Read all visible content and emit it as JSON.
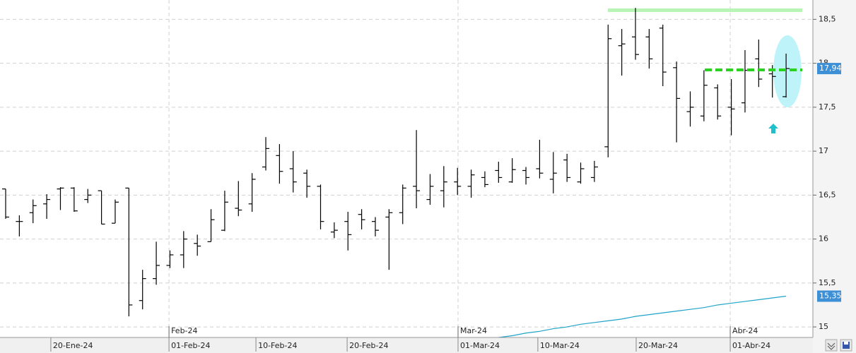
{
  "chart_data": {
    "type": "ohlc",
    "categories": [
      null,
      null,
      null,
      null,
      null,
      null,
      null,
      null,
      null,
      null,
      null,
      null,
      null,
      null,
      null,
      null,
      null,
      null,
      null,
      null,
      null,
      null,
      null,
      null,
      null,
      null,
      null,
      null,
      null,
      null,
      null,
      null,
      null,
      null,
      null,
      null,
      null,
      null,
      null,
      null,
      null,
      null,
      null,
      null,
      null,
      null,
      null,
      null,
      null,
      null,
      null,
      null,
      null,
      null,
      null,
      null,
      null,
      null
    ],
    "open": [
      16.57,
      16.2,
      16.3,
      16.4,
      16.57,
      16.58,
      16.45,
      16.55,
      16.18,
      16.58,
      15.3,
      15.55,
      15.7,
      15.82,
      15.95,
      15.97,
      16.1,
      16.35,
      16.4,
      16.82,
      16.95,
      16.8,
      16.75,
      16.6,
      16.08,
      16.2,
      16.28,
      16.2,
      16.25,
      16.3,
      16.6,
      16.45,
      16.55,
      16.65,
      16.6,
      16.7,
      16.78,
      16.65,
      16.78,
      16.8,
      16.68,
      16.9,
      16.65,
      16.7,
      17.05,
      18.2,
      18.3,
      18.3,
      18.4,
      17.95,
      17.45,
      17.4,
      17.72,
      17.5,
      17.55,
      18.05,
      17.88,
      17.62
    ],
    "high": [
      16.57,
      16.27,
      16.45,
      16.51,
      16.59,
      16.59,
      16.57,
      16.55,
      16.45,
      16.58,
      15.65,
      15.97,
      15.87,
      16.09,
      16.05,
      16.34,
      16.55,
      16.66,
      16.75,
      17.16,
      17.08,
      17.0,
      16.79,
      16.62,
      16.19,
      16.31,
      16.34,
      16.25,
      16.34,
      16.62,
      17.24,
      16.74,
      16.83,
      16.81,
      16.79,
      16.77,
      16.88,
      16.92,
      16.82,
      17.13,
      16.99,
      16.97,
      16.87,
      16.89,
      18.44,
      18.39,
      18.63,
      18.39,
      18.44,
      18.02,
      17.68,
      17.92,
      17.76,
      17.82,
      18.15,
      18.27,
      17.98,
      18.11
    ],
    "low": [
      16.23,
      16.03,
      16.18,
      16.23,
      16.33,
      16.31,
      16.41,
      16.17,
      16.18,
      15.12,
      15.2,
      15.48,
      15.67,
      15.67,
      15.81,
      15.97,
      16.09,
      16.26,
      16.31,
      16.78,
      16.63,
      16.53,
      16.47,
      16.11,
      16.01,
      15.87,
      16.11,
      16.03,
      15.65,
      16.17,
      16.35,
      16.39,
      16.36,
      16.5,
      16.47,
      16.59,
      16.64,
      16.64,
      16.62,
      16.69,
      16.52,
      16.65,
      16.63,
      16.65,
      16.93,
      17.86,
      18.04,
      17.94,
      17.74,
      17.1,
      17.28,
      17.34,
      17.36,
      17.18,
      17.44,
      17.73,
      17.61,
      17.61
    ],
    "close": [
      16.25,
      16.2,
      16.38,
      16.45,
      16.58,
      16.32,
      16.5,
      16.17,
      16.42,
      15.25,
      15.55,
      15.7,
      15.82,
      16.0,
      15.92,
      16.22,
      16.42,
      16.33,
      16.68,
      17.03,
      16.77,
      16.65,
      16.6,
      16.2,
      16.1,
      16.05,
      16.22,
      16.1,
      16.3,
      16.58,
      16.55,
      16.6,
      16.65,
      16.6,
      16.73,
      16.62,
      16.7,
      16.79,
      16.7,
      16.75,
      16.75,
      16.7,
      16.8,
      16.82,
      18.28,
      18.22,
      18.1,
      18.05,
      17.9,
      17.6,
      17.5,
      17.75,
      17.4,
      17.48,
      17.92,
      17.82,
      17.85,
      17.94
    ],
    "moving_average": {
      "color": "#1fa3c9",
      "values": [
        null,
        null,
        null,
        null,
        null,
        null,
        null,
        null,
        null,
        null,
        null,
        null,
        null,
        null,
        null,
        null,
        null,
        null,
        null,
        null,
        null,
        null,
        null,
        null,
        null,
        null,
        null,
        null,
        null,
        null,
        null,
        null,
        null,
        null,
        null,
        null,
        14.88,
        14.9,
        14.93,
        14.95,
        14.98,
        15.0,
        15.03,
        15.05,
        15.07,
        15.09,
        15.12,
        15.14,
        15.16,
        15.18,
        15.2,
        15.22,
        15.25,
        15.27,
        15.29,
        15.31,
        15.33,
        15.35
      ]
    },
    "ylim": [
      14.88,
      18.72
    ],
    "yticks": [
      15,
      {
        "value": 15.5,
        "label": "15,5"
      },
      16,
      {
        "value": 16.5,
        "label": "16,5"
      },
      17,
      {
        "value": 17.5,
        "label": "17,5"
      },
      18,
      {
        "value": 18.5,
        "label": "18,5"
      }
    ],
    "xticks": [
      {
        "value": 3.3,
        "label": "20-Ene-24"
      },
      {
        "value": 11.93,
        "label": "01-Feb-24"
      },
      {
        "value": 18.28,
        "label": "10-Feb-24"
      },
      {
        "value": 24.94,
        "label": "20-Feb-24"
      },
      {
        "value": 33.04,
        "label": "01-Mar-24"
      },
      {
        "value": 38.87,
        "label": "10-Mar-24"
      },
      {
        "value": 46.05,
        "label": "20-Mar-24"
      },
      {
        "value": 52.92,
        "label": "01-Abr-24"
      }
    ],
    "month_ticks": [
      {
        "value": 11.93,
        "label": "Feb-24"
      },
      {
        "value": 33.04,
        "label": "Mar-24"
      },
      {
        "value": 52.92,
        "label": "Abr-24"
      }
    ],
    "price_labels": [
      {
        "value": 17.94,
        "label": "17,94",
        "color": "#3d8fd6"
      },
      {
        "value": 15.35,
        "label": "15,35",
        "color": "#3d8fd6"
      }
    ],
    "grid": true
  }
}
